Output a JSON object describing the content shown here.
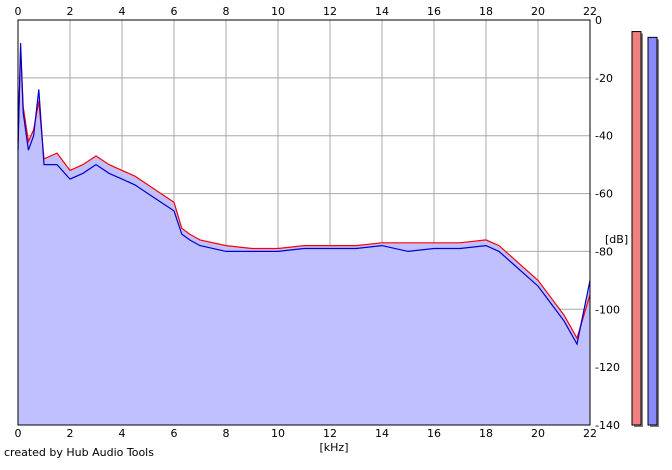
{
  "footer": {
    "credit": "created by Hub Audio Tools"
  },
  "colors": {
    "left": "#ff0000",
    "right": "#0000cc",
    "fill": "#c0c0ff",
    "meter_left": "#f08080",
    "meter_right": "#8888ff"
  },
  "chart_data": {
    "type": "line",
    "title": "",
    "xlabel": "[kHz]",
    "ylabel": "[dB]",
    "xlim": [
      0,
      22
    ],
    "ylim": [
      -140,
      0
    ],
    "x_ticks": [
      "0",
      "2",
      "4",
      "6",
      "8",
      "10",
      "12",
      "14",
      "16",
      "18",
      "20",
      "22"
    ],
    "y_ticks": [
      "0",
      "-20",
      "-40",
      "-60",
      "-80",
      "-100",
      "-120",
      "-140"
    ],
    "grid": true,
    "series": [
      {
        "color": "#ff0000",
        "x": [
          0,
          0.1,
          0.2,
          0.4,
          0.6,
          0.8,
          1.0,
          1.5,
          2.0,
          2.5,
          3.0,
          3.5,
          4.0,
          4.5,
          5.0,
          5.5,
          6.0,
          6.3,
          6.6,
          7,
          8,
          9,
          10,
          11,
          12,
          13,
          14,
          15,
          16,
          17,
          18,
          18.5,
          19,
          19.5,
          20,
          20.5,
          21,
          21.5,
          22
        ],
        "values": [
          -42,
          -10,
          -30,
          -42,
          -38,
          -28,
          -48,
          -46,
          -52,
          -50,
          -47,
          -50,
          -52,
          -54,
          -57,
          -60,
          -63,
          -72,
          -74,
          -76,
          -78,
          -79,
          -79,
          -78,
          -78,
          -78,
          -77,
          -77,
          -77,
          -77,
          -76,
          -78,
          -82,
          -86,
          -90,
          -96,
          -102,
          -110,
          -95
        ]
      },
      {
        "color": "#0000cc",
        "x": [
          0,
          0.1,
          0.2,
          0.4,
          0.6,
          0.8,
          1.0,
          1.5,
          2.0,
          2.5,
          3.0,
          3.5,
          4.0,
          4.5,
          5.0,
          5.5,
          6.0,
          6.3,
          6.6,
          7,
          8,
          9,
          10,
          11,
          12,
          13,
          14,
          15,
          16,
          17,
          18,
          18.5,
          19,
          19.5,
          20,
          20.5,
          21,
          21.5,
          22
        ],
        "values": [
          -45,
          -8,
          -32,
          -45,
          -40,
          -24,
          -50,
          -50,
          -55,
          -53,
          -50,
          -53,
          -55,
          -57,
          -60,
          -63,
          -66,
          -74,
          -76,
          -78,
          -80,
          -80,
          -80,
          -79,
          -79,
          -79,
          -78,
          -80,
          -79,
          -79,
          -78,
          -80,
          -84,
          -88,
          -92,
          -98,
          -104,
          -112,
          -90
        ]
      }
    ],
    "meters": [
      {
        "color": "#f08080",
        "level_db": -4
      },
      {
        "color": "#8888ff",
        "level_db": -6
      }
    ]
  }
}
